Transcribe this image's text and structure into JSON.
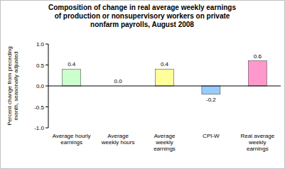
{
  "chart_data": {
    "type": "bar",
    "title": "Composition of change in real average weekly earnings of production or nonsupervisory workers on private nonfarm payrolls, August 2008",
    "y_label": "Percent change from preceding month, seasonally adjusted",
    "categories": [
      "Average hourly earnings",
      "Average weekly hours",
      "Average weekly earnings",
      "CPI-W",
      "Real average weekly earnings"
    ],
    "values": [
      0.4,
      0.0,
      0.4,
      -0.2,
      0.6
    ],
    "value_labels": [
      "0.4",
      "0.0",
      "0.4",
      "-0.2",
      "0.6"
    ],
    "colors": [
      "#ccffcc",
      "#ccffcc",
      "#ffff99",
      "#99ccff",
      "#ff99cc"
    ],
    "ylim": [
      -1.0,
      1.0
    ],
    "yticks": [
      {
        "value": -1.0,
        "label": "-1.0"
      },
      -0.5,
      {
        "value": 0,
        "label": "0.0"
      },
      0.5,
      {
        "value": 1.0,
        "label": "1.0"
      }
    ],
    "grid": false,
    "data_labels": true
  }
}
